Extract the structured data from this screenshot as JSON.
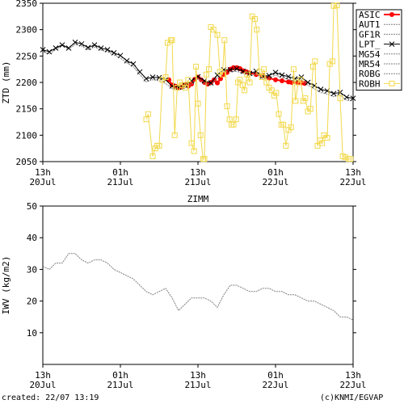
{
  "footer": {
    "created": "created: 22/07 13:19",
    "credit": "(c)KNMI/EGVAP"
  },
  "chart_data": [
    {
      "type": "line",
      "title": "",
      "ylabel": "ZTD (mm)",
      "ylim": [
        2050,
        2350
      ],
      "yticks": [
        2050,
        2100,
        2150,
        2200,
        2250,
        2300,
        2350
      ],
      "xlim": [
        0,
        48
      ],
      "xticks": [
        {
          "x": 0,
          "l1": "13h",
          "l2": "20Jul"
        },
        {
          "x": 12,
          "l1": "01h",
          "l2": "21Jul"
        },
        {
          "x": 24,
          "l1": "13h",
          "l2": "21Jul"
        },
        {
          "x": 36,
          "l1": "01h",
          "l2": "22Jul"
        },
        {
          "x": 48,
          "l1": "13h",
          "l2": "22Jul"
        }
      ],
      "legend_position": "right",
      "series": [
        {
          "name": "ASIC",
          "color": "#ff0000",
          "style": "solid-dot",
          "x": [
            19.5,
            20.0,
            20.5,
            21.0,
            21.5,
            22.0,
            22.5,
            23.0,
            23.5,
            24.0,
            24.5,
            25.0,
            25.5,
            26.0,
            26.5,
            27.0,
            27.5,
            28.0,
            28.5,
            29.0,
            29.5,
            30.0,
            30.5,
            31.0,
            31.5,
            32.0,
            33.0,
            34.0,
            35.0,
            36.0,
            37.0,
            38.0,
            38.5,
            39.5,
            40.0,
            40.5
          ],
          "y": [
            2205,
            2195,
            2193,
            2189,
            2191,
            2196,
            2193,
            2197,
            2206,
            2210,
            2205,
            2200,
            2197,
            2200,
            2205,
            2199,
            2207,
            2215,
            2219,
            2225,
            2228,
            2228,
            2226,
            2222,
            2220,
            2218,
            2215,
            2213,
            2208,
            2205,
            2203,
            2201,
            2200,
            2199,
            2199,
            2198
          ]
        },
        {
          "name": "AUT1",
          "color": "#808080",
          "style": "dotted",
          "x": [],
          "y": []
        },
        {
          "name": "GF1R",
          "color": "#808080",
          "style": "dotted",
          "x": [
            0,
            1,
            2,
            3,
            4,
            5,
            6,
            7,
            8,
            9,
            10,
            11,
            12,
            13,
            14,
            15,
            16,
            17,
            18,
            19,
            20,
            21,
            22,
            23,
            24,
            25,
            26,
            27,
            28,
            29,
            30,
            31,
            32,
            33,
            34,
            35,
            36,
            37,
            38,
            39,
            40,
            41,
            42,
            43,
            44,
            45,
            46,
            47,
            48
          ],
          "y": [
            2258,
            2254,
            2262,
            2270,
            2263,
            2272,
            2269,
            2262,
            2267,
            2261,
            2258,
            2252,
            2246,
            2237,
            2230,
            2215,
            2201,
            2205,
            2203,
            2198,
            2188,
            2186,
            2189,
            2197,
            2207,
            2198,
            2194,
            2209,
            2220,
            2220,
            2221,
            2217,
            2212,
            2216,
            2207,
            2208,
            2214,
            2209,
            2206,
            2202,
            2205,
            2195,
            2188,
            2181,
            2178,
            2173,
            2176,
            2166,
            2165
          ]
        },
        {
          "name": "LPT_",
          "color": "#000000",
          "style": "solid-x",
          "x": [
            0,
            1,
            2,
            3,
            4,
            5,
            6,
            7,
            8,
            9,
            10,
            11,
            12,
            13,
            14,
            15,
            16,
            17,
            18,
            19,
            20,
            21,
            22,
            23,
            24,
            25,
            26,
            27,
            28,
            29,
            30,
            31,
            32,
            33,
            34,
            35,
            36,
            37,
            38,
            39,
            40,
            41,
            42,
            43,
            44,
            45,
            46,
            47,
            48
          ],
          "y": [
            2262,
            2258,
            2265,
            2271,
            2265,
            2276,
            2273,
            2266,
            2271,
            2265,
            2262,
            2256,
            2251,
            2241,
            2235,
            2220,
            2207,
            2210,
            2209,
            2205,
            2193,
            2191,
            2195,
            2203,
            2211,
            2203,
            2199,
            2214,
            2224,
            2224,
            2226,
            2221,
            2217,
            2221,
            2212,
            2213,
            2219,
            2214,
            2211,
            2207,
            2210,
            2200,
            2194,
            2187,
            2184,
            2179,
            2181,
            2172,
            2170
          ]
        },
        {
          "name": "MG54",
          "color": "#808080",
          "style": "dotted",
          "x": [],
          "y": []
        },
        {
          "name": "MR54",
          "color": "#808080",
          "style": "dotted",
          "x": [],
          "y": []
        },
        {
          "name": "ROBG",
          "color": "#808080",
          "style": "dotted",
          "x": [],
          "y": []
        },
        {
          "name": "ROBH",
          "color": "#f2d84a",
          "style": "solid-square",
          "x": [
            16.0,
            16.3,
            17.0,
            17.4,
            17.7,
            18.0,
            18.5,
            19.0,
            19.3,
            19.8,
            20.0,
            20.4,
            20.8,
            21.2,
            21.6,
            22.0,
            22.5,
            23.0,
            23.4,
            23.7,
            24.0,
            24.4,
            24.8,
            25.0,
            25.3,
            25.7,
            26.0,
            26.4,
            27.0,
            27.4,
            27.8,
            28.1,
            28.5,
            28.9,
            29.2,
            29.5,
            29.9,
            30.2,
            30.5,
            30.9,
            31.2,
            31.6,
            32.0,
            32.4,
            32.8,
            33.1,
            33.5,
            33.9,
            34.2,
            34.6,
            35.0,
            35.4,
            35.8,
            36.1,
            36.5,
            36.9,
            37.2,
            37.6,
            38.0,
            38.4,
            38.8,
            39.1,
            39.5,
            39.9,
            40.3,
            40.6,
            41.0,
            41.4,
            41.8,
            42.1,
            42.5,
            42.9,
            43.2,
            43.5,
            44.0,
            44.4,
            44.8,
            45.0,
            45.5,
            46.0,
            46.4,
            46.8,
            47.3,
            47.6
          ],
          "y": [
            2130,
            2140,
            2060,
            2075,
            2080,
            2080,
            2205,
            2210,
            2275,
            2280,
            2280,
            2100,
            2190,
            2200,
            2195,
            2190,
            2205,
            2085,
            2070,
            2230,
            2160,
            2100,
            2055,
            2055,
            2215,
            2225,
            2305,
            2300,
            2290,
            2220,
            2215,
            2280,
            2155,
            2130,
            2120,
            2120,
            2130,
            2200,
            2205,
            2195,
            2185,
            2215,
            2200,
            2325,
            2320,
            2300,
            2220,
            2210,
            2225,
            2200,
            2190,
            2185,
            2175,
            2180,
            2140,
            2120,
            2120,
            2080,
            2110,
            2115,
            2225,
            2165,
            2200,
            2205,
            2165,
            2170,
            2145,
            2150,
            2230,
            2240,
            2080,
            2090,
            2085,
            2100,
            2095,
            2235,
            2240,
            2345,
            2346,
            2170,
            2060,
            2058,
            2055,
            2055
          ]
        }
      ]
    },
    {
      "type": "line",
      "title": "ZIMM",
      "ylabel": "IWV (kg/m2)",
      "ylim": [
        0,
        50
      ],
      "yticks": [
        10,
        20,
        30,
        40,
        50
      ],
      "xlim": [
        0,
        48
      ],
      "xticks": [
        {
          "x": 0,
          "l1": "13h",
          "l2": "20Jul"
        },
        {
          "x": 12,
          "l1": "01h",
          "l2": "21Jul"
        },
        {
          "x": 24,
          "l1": "13h",
          "l2": "21Jul"
        },
        {
          "x": 36,
          "l1": "01h",
          "l2": "22Jul"
        },
        {
          "x": 48,
          "l1": "13h",
          "l2": "22Jul"
        }
      ],
      "series": [
        {
          "name": "IWV",
          "color": "#808080",
          "style": "dotted",
          "x": [
            0,
            1,
            2,
            3,
            4,
            5,
            6,
            7,
            8,
            9,
            10,
            11,
            12,
            13,
            14,
            15,
            16,
            17,
            18,
            19,
            20,
            21,
            22,
            23,
            24,
            25,
            26,
            27,
            28,
            29,
            30,
            31,
            32,
            33,
            34,
            35,
            36,
            37,
            38,
            39,
            40,
            41,
            42,
            43,
            44,
            45,
            46,
            47,
            48
          ],
          "y": [
            31,
            30,
            32,
            32,
            35,
            35,
            33,
            32,
            33,
            33,
            32,
            30,
            29,
            28,
            27,
            25,
            23,
            22,
            23,
            24,
            21,
            17,
            19,
            21,
            21,
            21,
            20,
            18,
            22,
            25,
            25,
            24,
            23,
            23,
            24,
            24,
            23,
            23,
            22,
            22,
            21,
            20,
            20,
            19,
            18,
            17,
            15,
            15,
            14
          ]
        }
      ]
    }
  ]
}
